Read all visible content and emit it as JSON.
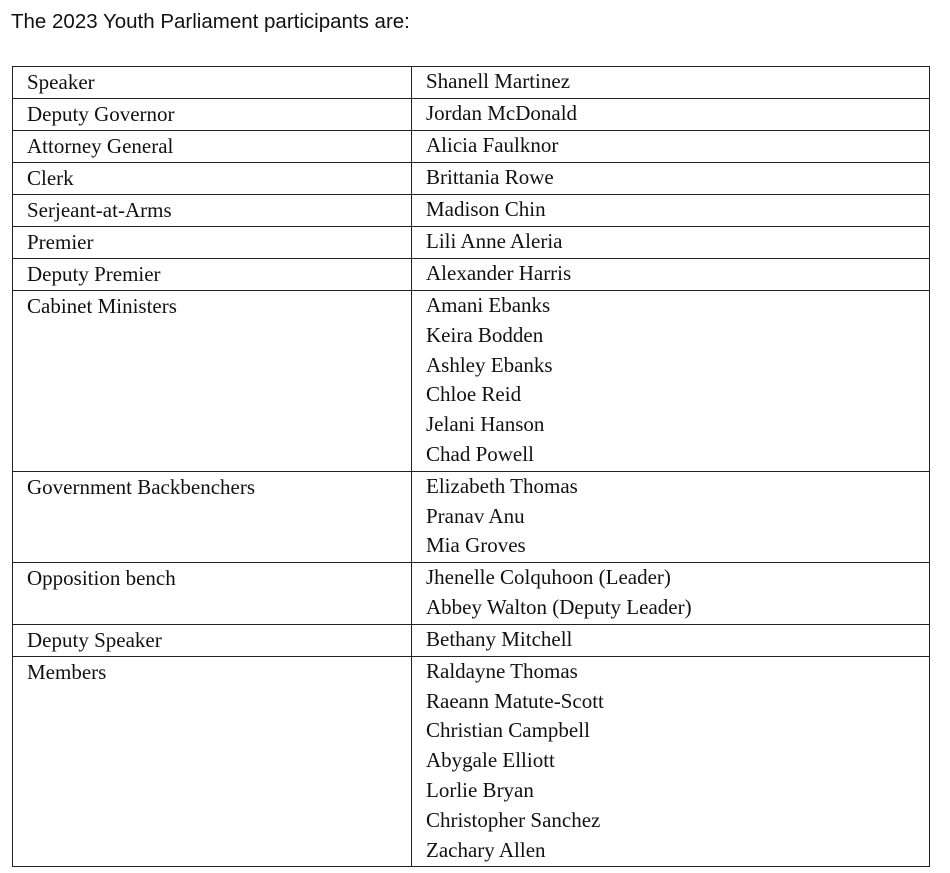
{
  "heading": "The 2023 Youth Parliament participants are:",
  "rows": [
    {
      "role": "Speaker",
      "names": [
        "Shanell Martinez"
      ]
    },
    {
      "role": "Deputy Governor",
      "names": [
        "Jordan McDonald"
      ]
    },
    {
      "role": "Attorney General",
      "names": [
        "Alicia Faulknor"
      ]
    },
    {
      "role": "Clerk",
      "names": [
        "Brittania Rowe"
      ]
    },
    {
      "role": "Serjeant-at-Arms",
      "names": [
        "Madison Chin"
      ]
    },
    {
      "role": "Premier",
      "names": [
        "Lili Anne Aleria"
      ]
    },
    {
      "role": "Deputy Premier",
      "names": [
        "Alexander Harris"
      ]
    },
    {
      "role": "Cabinet Ministers",
      "names": [
        "Amani Ebanks",
        "Keira Bodden",
        "Ashley Ebanks",
        "Chloe Reid",
        "Jelani Hanson",
        "Chad Powell"
      ]
    },
    {
      "role": "Government Backbenchers",
      "names": [
        "Elizabeth Thomas",
        "Pranav Anu",
        "Mia Groves"
      ]
    },
    {
      "role": "Opposition bench",
      "names": [
        "Jhenelle Colquhoon (Leader)",
        "Abbey Walton (Deputy Leader)"
      ]
    },
    {
      "role": "Deputy Speaker",
      "names": [
        "Bethany Mitchell"
      ]
    },
    {
      "role": "Members",
      "names": [
        "Raldayne Thomas",
        "Raeann Matute-Scott",
        "Christian Campbell",
        "Abygale Elliott",
        "Lorlie Bryan",
        "Christopher Sanchez",
        "Zachary Allen"
      ]
    }
  ]
}
